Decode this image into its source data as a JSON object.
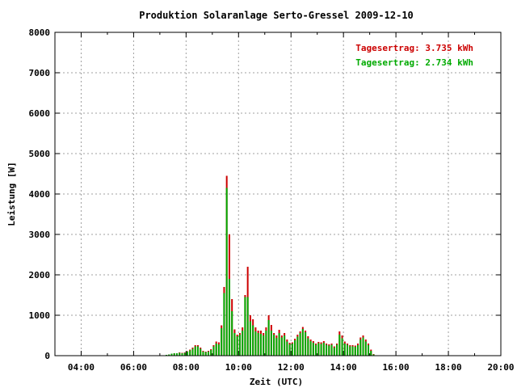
{
  "chart_data": {
    "type": "bar",
    "title": "Produktion Solaranlage Serto-Gressel 2009-12-10",
    "xlabel": "Zeit (UTC)",
    "ylabel": "Leistung [W]",
    "xlim": [
      3.0,
      20.0
    ],
    "ylim": [
      0,
      8000
    ],
    "x_ticks": [
      "04:00",
      "06:00",
      "08:00",
      "10:00",
      "12:00",
      "14:00",
      "16:00",
      "18:00",
      "20:00"
    ],
    "x_tick_values": [
      4,
      6,
      8,
      10,
      12,
      14,
      16,
      18,
      20
    ],
    "x_minor_tick_values": [
      5,
      7,
      9,
      11,
      13,
      15,
      17,
      19
    ],
    "y_ticks": [
      "0",
      "1000",
      "2000",
      "3000",
      "4000",
      "5000",
      "6000",
      "7000",
      "8000"
    ],
    "y_tick_values": [
      0,
      1000,
      2000,
      3000,
      4000,
      5000,
      6000,
      7000,
      8000
    ],
    "grid": true,
    "legend_position": "top-right",
    "series": [
      {
        "name": "Tagesertrag: 3.735 kWh",
        "color": "#cc0000"
      },
      {
        "name": "Tagesertrag: 2.734 kWh",
        "color": "#00aa00"
      }
    ],
    "x": [
      7.25,
      7.35,
      7.45,
      7.55,
      7.65,
      7.75,
      7.85,
      7.95,
      8.05,
      8.15,
      8.25,
      8.35,
      8.45,
      8.55,
      8.65,
      8.75,
      8.85,
      8.95,
      9.05,
      9.15,
      9.25,
      9.35,
      9.45,
      9.55,
      9.65,
      9.75,
      9.85,
      9.95,
      10.05,
      10.15,
      10.25,
      10.35,
      10.45,
      10.55,
      10.65,
      10.75,
      10.85,
      10.95,
      11.05,
      11.15,
      11.25,
      11.35,
      11.45,
      11.55,
      11.65,
      11.75,
      11.85,
      11.95,
      12.05,
      12.15,
      12.25,
      12.35,
      12.45,
      12.55,
      12.65,
      12.75,
      12.85,
      12.95,
      13.05,
      13.15,
      13.25,
      13.35,
      13.45,
      13.55,
      13.65,
      13.75,
      13.85,
      13.95,
      14.05,
      14.15,
      14.25,
      14.35,
      14.45,
      14.55,
      14.65,
      14.75,
      14.85,
      14.95,
      15.05,
      15.15
    ],
    "values_red": [
      20,
      30,
      50,
      60,
      60,
      80,
      70,
      80,
      110,
      150,
      200,
      260,
      260,
      200,
      120,
      100,
      120,
      160,
      260,
      350,
      330,
      750,
      1700,
      4450,
      3000,
      1400,
      650,
      520,
      560,
      700,
      1500,
      2200,
      1000,
      900,
      700,
      620,
      620,
      560,
      700,
      1000,
      760,
      560,
      500,
      640,
      500,
      560,
      400,
      320,
      330,
      420,
      520,
      600,
      710,
      620,
      480,
      400,
      360,
      300,
      340,
      330,
      360,
      300,
      280,
      300,
      230,
      300,
      600,
      500,
      350,
      300,
      260,
      260,
      250,
      300,
      450,
      500,
      400,
      300,
      150,
      40
    ],
    "values_green": [
      20,
      30,
      50,
      60,
      60,
      70,
      60,
      70,
      100,
      130,
      170,
      230,
      230,
      170,
      100,
      90,
      100,
      140,
      230,
      300,
      280,
      680,
      1550,
      4150,
      1900,
      1100,
      560,
      480,
      520,
      620,
      1450,
      1450,
      850,
      750,
      600,
      560,
      540,
      500,
      620,
      880,
      620,
      520,
      440,
      560,
      450,
      500,
      350,
      280,
      300,
      380,
      470,
      560,
      660,
      580,
      430,
      360,
      320,
      270,
      310,
      290,
      320,
      270,
      250,
      270,
      200,
      270,
      520,
      430,
      300,
      270,
      230,
      230,
      220,
      260,
      400,
      450,
      350,
      260,
      120,
      30
    ]
  }
}
